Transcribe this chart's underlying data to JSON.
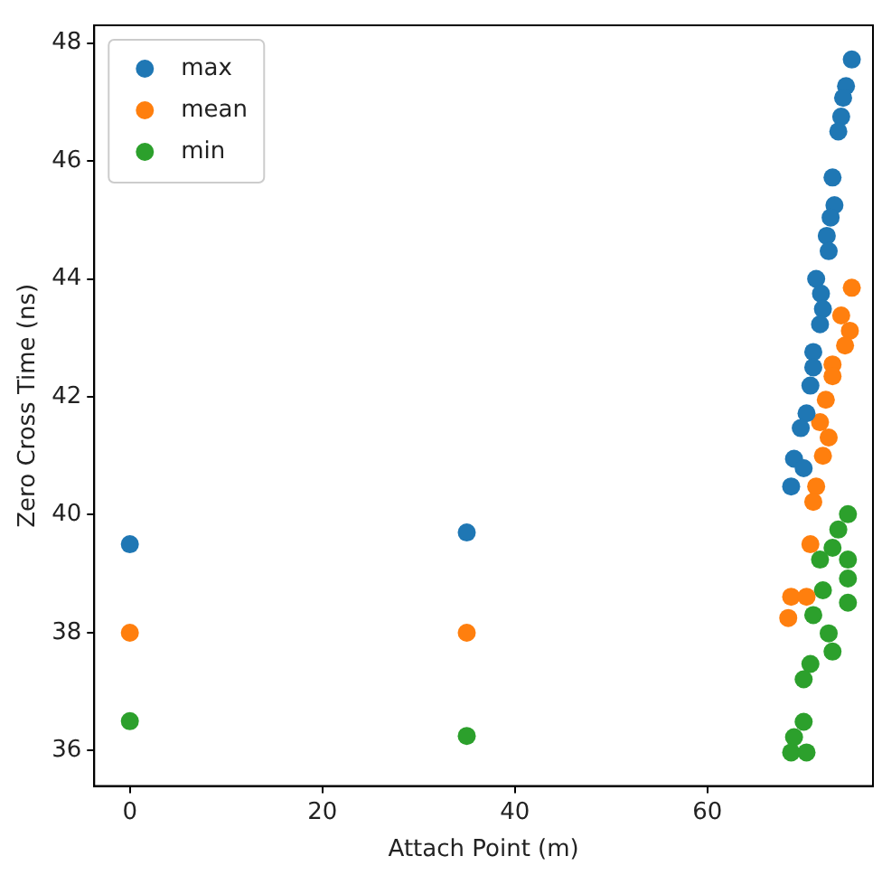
{
  "chart_data": {
    "type": "scatter",
    "xlabel": "Attach Point (m)",
    "ylabel": "Zero Cross Time (ns)",
    "xlim": [
      -3.7,
      77.2
    ],
    "xticks": [
      0,
      20,
      40,
      60
    ],
    "ylim": [
      35.4,
      48.3
    ],
    "yticks": [
      36,
      38,
      40,
      42,
      44,
      46,
      48
    ],
    "grid": false,
    "legend": "top left",
    "marker": "circle",
    "series": [
      {
        "name": "max",
        "color": "#1f77b4",
        "x": [
          0,
          35,
          75.0,
          74.4,
          74.1,
          73.9,
          73.6,
          73.0,
          73.2,
          72.8,
          72.4,
          72.6,
          71.3,
          71.8,
          72.0,
          71.7,
          71.0,
          71.0,
          70.7,
          70.3,
          69.7,
          69.0,
          70.0,
          68.7
        ],
        "values": [
          39.5,
          39.7,
          47.72,
          47.27,
          47.07,
          46.75,
          46.5,
          45.72,
          45.25,
          45.04,
          44.73,
          44.47,
          44.0,
          43.75,
          43.49,
          43.23,
          42.76,
          42.5,
          42.19,
          41.72,
          41.47,
          40.95,
          40.79,
          40.48
        ]
      },
      {
        "name": "mean",
        "color": "#ff7f0e",
        "x": [
          0,
          35,
          75.0,
          73.9,
          74.8,
          74.3,
          73.0,
          73.0,
          72.3,
          71.7,
          72.6,
          72.0,
          71.3,
          71.0,
          70.7,
          68.7,
          70.3,
          68.4
        ],
        "values": [
          38.0,
          38.0,
          43.85,
          43.38,
          43.12,
          42.87,
          42.55,
          42.35,
          41.95,
          41.57,
          41.31,
          41.0,
          40.48,
          40.22,
          39.5,
          38.61,
          38.61,
          38.25
        ]
      },
      {
        "name": "min",
        "color": "#2ca02c",
        "x": [
          0,
          35,
          74.6,
          73.6,
          73.0,
          71.7,
          74.6,
          74.6,
          72.0,
          74.6,
          71.0,
          72.6,
          73.0,
          70.7,
          70.0,
          70.0,
          69.0,
          68.7,
          70.3
        ],
        "values": [
          36.5,
          36.25,
          40.01,
          39.75,
          39.44,
          39.24,
          39.24,
          38.92,
          38.72,
          38.51,
          38.3,
          37.99,
          37.68,
          37.47,
          37.21,
          36.49,
          36.23,
          35.97,
          35.97
        ]
      }
    ]
  }
}
